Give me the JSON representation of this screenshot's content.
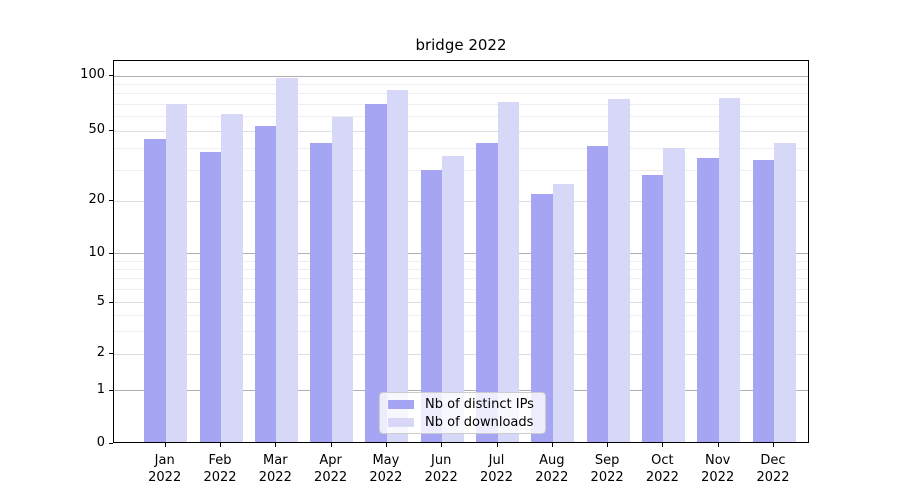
{
  "title": "bridge 2022",
  "chart_data": {
    "type": "bar",
    "title": "bridge 2022",
    "categories": [
      "Jan 2022",
      "Feb 2022",
      "Mar 2022",
      "Apr 2022",
      "May 2022",
      "Jun 2022",
      "Jul 2022",
      "Aug 2022",
      "Sep 2022",
      "Oct 2022",
      "Nov 2022",
      "Dec 2022"
    ],
    "series": [
      {
        "name": "Nb of distinct IPs",
        "color": "#a5a5f3",
        "values": [
          45,
          38,
          53,
          43,
          70,
          30,
          43,
          22,
          41,
          28,
          35,
          34
        ]
      },
      {
        "name": "Nb of downloads",
        "color": "#d7d7f8",
        "values": [
          70,
          62,
          97,
          60,
          84,
          36,
          72,
          25,
          75,
          40,
          76,
          43
        ]
      }
    ],
    "yscale": "symlog",
    "ylim": [
      0,
      120
    ],
    "y_tick_values": [
      0,
      1,
      2,
      5,
      10,
      20,
      50,
      100
    ],
    "y_tick_labels": [
      "0",
      "1",
      "2",
      "5",
      "10",
      "20",
      "50",
      "100"
    ],
    "y_major_values": [
      1,
      10,
      100
    ],
    "y_minor_gridline_values": [
      3,
      4,
      6,
      7,
      8,
      9,
      30,
      40,
      60,
      70,
      80,
      90
    ],
    "xlabel": "",
    "ylabel": "",
    "grid": "both",
    "legend_loc": "lower center inside"
  },
  "colors": {
    "bar_distinct_ips": "#a5a5f3",
    "bar_downloads": "#d7d7f8",
    "grid_major": "#b0b0b0",
    "grid_minor_labeled": "#dedede",
    "grid_minor": "#eeeeee",
    "axis": "#000000",
    "legend_border": "#cccccc",
    "background": "#ffffff"
  }
}
